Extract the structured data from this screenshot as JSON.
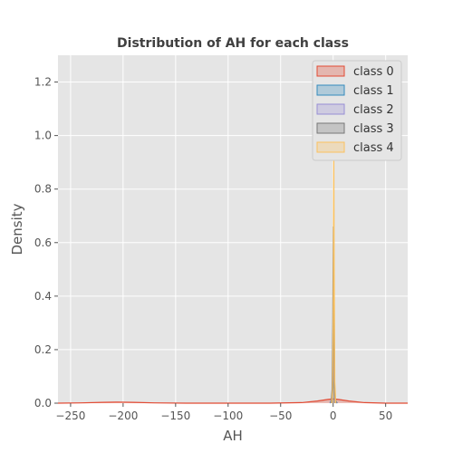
{
  "chart_data": {
    "type": "area",
    "title": "Distribution of AH for each class",
    "xlabel": "AH",
    "ylabel": "Density",
    "xlim": [
      -262,
      71
    ],
    "ylim": [
      0,
      1.3
    ],
    "x_ticks": [
      -250,
      -200,
      -150,
      -100,
      -50,
      0,
      50
    ],
    "y_ticks": [
      0.0,
      0.2,
      0.4,
      0.6,
      0.8,
      1.0,
      1.2
    ],
    "x_tick_labels": [
      "−250",
      "−200",
      "−150",
      "−100",
      "−50",
      "0",
      "50"
    ],
    "y_tick_labels": [
      "0.0",
      "0.2",
      "0.4",
      "0.6",
      "0.8",
      "1.0",
      "1.2"
    ],
    "grid": true,
    "legend_position": "top-right",
    "series": [
      {
        "name": "class 0",
        "color": "#E24A33",
        "points": [
          [
            -262,
            0.0
          ],
          [
            -240,
            0.001
          ],
          [
            -220,
            0.003
          ],
          [
            -205,
            0.004
          ],
          [
            -190,
            0.003
          ],
          [
            -170,
            0.001
          ],
          [
            -140,
            0.0
          ],
          [
            -60,
            0.0
          ],
          [
            -30,
            0.002
          ],
          [
            -15,
            0.008
          ],
          [
            -5,
            0.014
          ],
          [
            0,
            0.016
          ],
          [
            5,
            0.014
          ],
          [
            15,
            0.008
          ],
          [
            30,
            0.002
          ],
          [
            50,
            0.0
          ],
          [
            71,
            0.0
          ]
        ]
      },
      {
        "name": "class 1",
        "color": "#348ABD",
        "points": [
          [
            -3,
            0.0
          ],
          [
            -1,
            0.02
          ],
          [
            0,
            0.06
          ],
          [
            0.5,
            0.12
          ],
          [
            1,
            0.06
          ],
          [
            2,
            0.01
          ],
          [
            4,
            0.0
          ]
        ]
      },
      {
        "name": "class 2",
        "color": "#988ED5",
        "points": [
          [
            -2.5,
            0.0
          ],
          [
            -1,
            0.03
          ],
          [
            0,
            0.12
          ],
          [
            0.5,
            0.2
          ],
          [
            1,
            0.09
          ],
          [
            2,
            0.01
          ],
          [
            3.5,
            0.0
          ]
        ]
      },
      {
        "name": "class 3",
        "color": "#777777",
        "points": [
          [
            -2,
            0.0
          ],
          [
            -1,
            0.05
          ],
          [
            -0.3,
            0.3
          ],
          [
            0.2,
            0.66
          ],
          [
            0.8,
            0.2
          ],
          [
            1.5,
            0.03
          ],
          [
            3,
            0.0
          ]
        ]
      },
      {
        "name": "class 4",
        "color": "#FBC15E",
        "points": [
          [
            -1.5,
            0.0
          ],
          [
            -0.5,
            0.05
          ],
          [
            0.2,
            0.4
          ],
          [
            0.6,
            0.95
          ],
          [
            1.0,
            0.5
          ],
          [
            1.6,
            0.08
          ],
          [
            2.5,
            0.0
          ]
        ]
      }
    ]
  }
}
